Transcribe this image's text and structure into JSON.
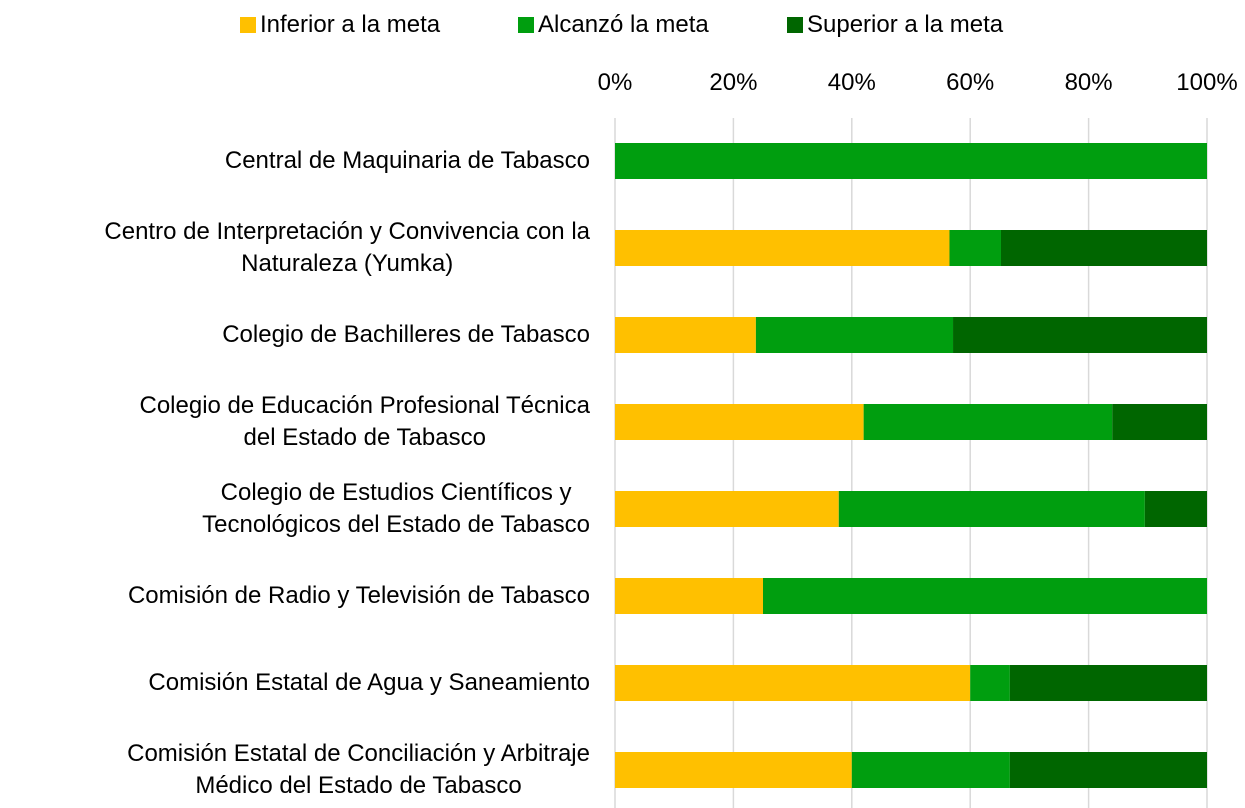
{
  "chart_data": {
    "type": "stacked-barh",
    "categories": [
      "Central de Maquinaria de Tabasco",
      "Centro de Interpretación y Convivencia con la\nNaturaleza (Yumka)",
      "Colegio de Bachilleres de Tabasco",
      "Colegio de Educación Profesional Técnica\ndel Estado de Tabasco",
      "Colegio de Estudios Científicos y\nTecnológicos del Estado de Tabasco",
      "Comisión de Radio y Televisión de Tabasco",
      "Comisión Estatal de Agua y Saneamiento",
      "Comisión Estatal de Conciliación y Arbitraje\nMédico del Estado de Tabasco"
    ],
    "series": [
      {
        "name": "Inferior a la meta",
        "color": "#ffc000",
        "values": [
          0,
          56.5,
          23.8,
          42,
          37.8,
          25,
          60,
          40
        ]
      },
      {
        "name": "Alcanzó la meta",
        "color": "#009e0f",
        "values": [
          100,
          8.7,
          33.3,
          42,
          51.7,
          75,
          6.7,
          26.7
        ]
      },
      {
        "name": "Superior a la meta",
        "color": "#006600",
        "values": [
          0,
          34.8,
          42.9,
          16,
          10.5,
          0,
          33.3,
          33.3
        ]
      }
    ],
    "xlim": [
      0,
      100
    ],
    "xticks": [
      {
        "value": 0,
        "label": "0%"
      },
      {
        "value": 20,
        "label": "20%"
      },
      {
        "value": 40,
        "label": "40%"
      },
      {
        "value": 60,
        "label": "60%"
      },
      {
        "value": 80,
        "label": "80%"
      },
      {
        "value": 100,
        "label": "100%"
      }
    ],
    "grid": true,
    "legend": "top"
  }
}
